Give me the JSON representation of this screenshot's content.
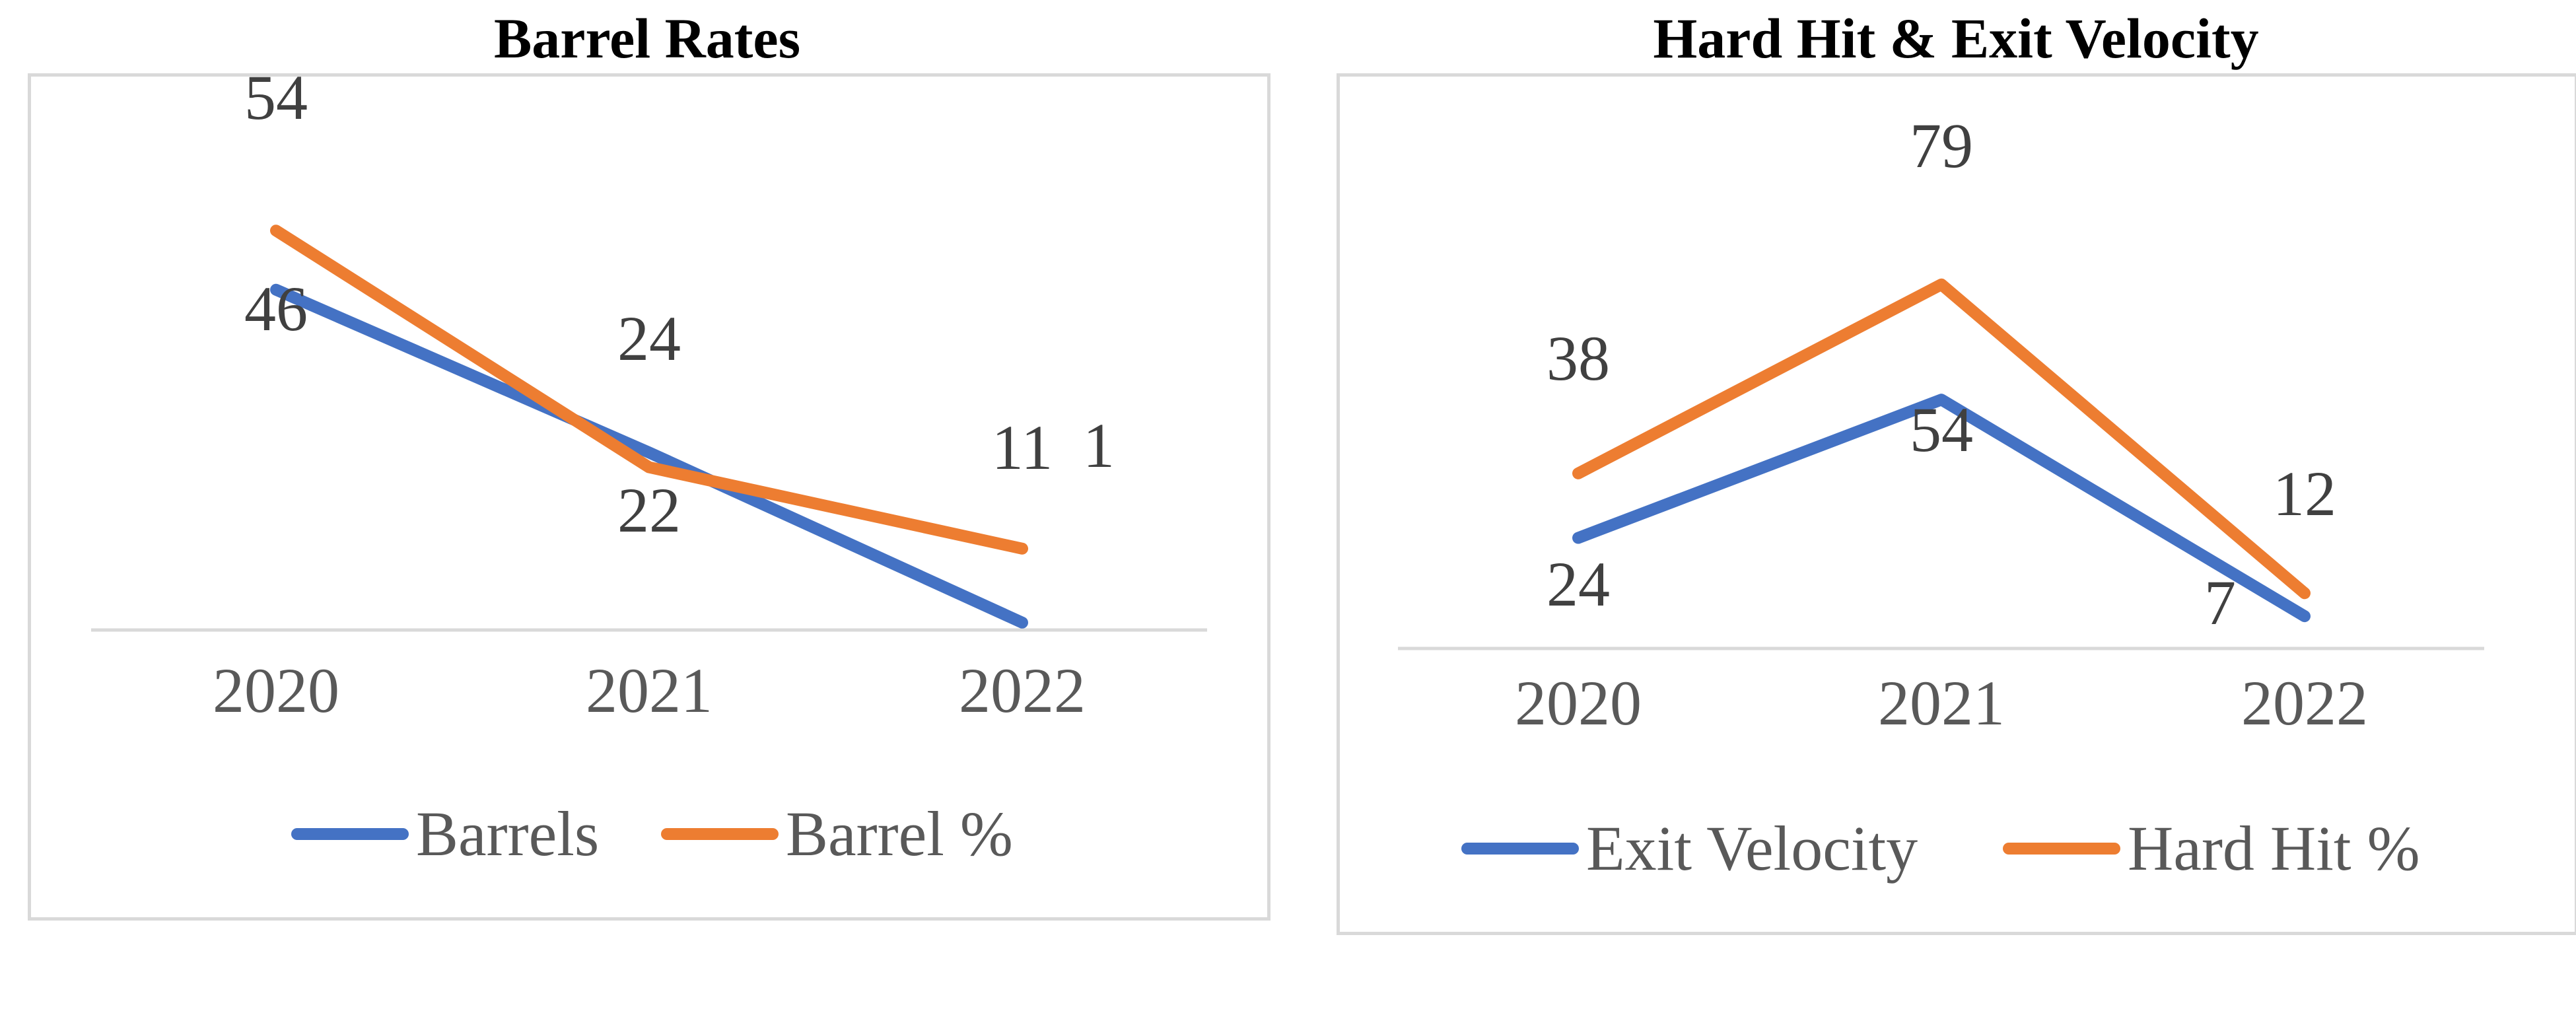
{
  "charts": {
    "left_title": "Barrel Rates",
    "right_title": "Hard Hit & Exit Velocity"
  },
  "chart_data": [
    {
      "type": "line",
      "title": "Barrel Rates",
      "categories": [
        "2020",
        "2021",
        "2022"
      ],
      "series": [
        {
          "name": "Barrels",
          "values": [
            46,
            24,
            1
          ],
          "color": "#4472c4"
        },
        {
          "name": "Barrel %",
          "values": [
            54,
            22,
            11
          ],
          "color": "#ed7d31"
        }
      ],
      "ylim": [
        0,
        60
      ],
      "grid": false,
      "legend": "bottom",
      "data_labels": true
    },
    {
      "type": "line",
      "title": "Hard Hit & Exit Velocity",
      "categories": [
        "2020",
        "2021",
        "2022"
      ],
      "series": [
        {
          "name": "Exit Velocity",
          "values": [
            24,
            54,
            7
          ],
          "color": "#4472c4"
        },
        {
          "name": "Hard Hit %",
          "values": [
            38,
            79,
            12
          ],
          "color": "#ed7d31"
        }
      ],
      "ylim": [
        0,
        90
      ],
      "grid": false,
      "legend": "bottom",
      "data_labels": true
    }
  ]
}
